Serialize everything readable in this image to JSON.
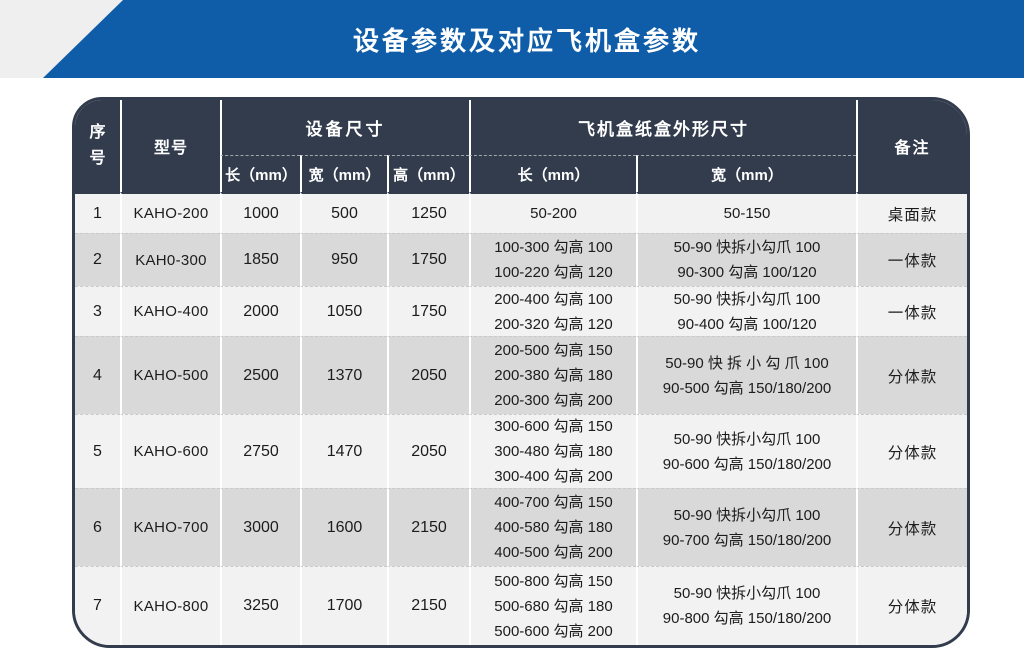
{
  "title": "设备参数及对应飞机盒参数",
  "colors": {
    "banner_blue": "#0F5DA8",
    "header_navy": "#323C4D",
    "row_light": "#F2F2F2",
    "row_dark": "#D9D9D9"
  },
  "table": {
    "headers": {
      "seq": "序号",
      "model": "型号",
      "device_group": "设备尺寸",
      "box_group": "飞机盒纸盒外形尺寸",
      "remark": "备注",
      "device_len": "长（mm）",
      "device_wid": "宽（mm）",
      "device_hgt": "高（mm）",
      "box_len": "长（mm）",
      "box_wid": "宽（mm）"
    },
    "rows": [
      {
        "seq": "1",
        "model": "KAHO-200",
        "len": "1000",
        "wid": "500",
        "hgt": "1250",
        "box_len": [
          "50-200"
        ],
        "box_wid": [
          "50-150"
        ],
        "remark": "桌面款"
      },
      {
        "seq": "2",
        "model": "KAH0-300",
        "len": "1850",
        "wid": "950",
        "hgt": "1750",
        "box_len": [
          "100-300 勾高 100",
          "100-220 勾高 120"
        ],
        "box_wid": [
          "50-90 快拆小勾爪 100",
          "90-300 勾高 100/120"
        ],
        "remark": "一体款"
      },
      {
        "seq": "3",
        "model": "KAHO-400",
        "len": "2000",
        "wid": "1050",
        "hgt": "1750",
        "box_len": [
          "200-400 勾高 100",
          "200-320 勾高 120"
        ],
        "box_wid": [
          "50-90 快拆小勾爪 100",
          "90-400 勾高 100/120"
        ],
        "remark": "一体款"
      },
      {
        "seq": "4",
        "model": "KAHO-500",
        "len": "2500",
        "wid": "1370",
        "hgt": "2050",
        "box_len": [
          "200-500 勾高 150",
          "200-380 勾高 180",
          "200-300 勾高 200"
        ],
        "box_wid": [
          "50-90 快 拆 小 勾 爪 100",
          "90-500 勾高 150/180/200"
        ],
        "remark": "分体款"
      },
      {
        "seq": "5",
        "model": "KAHO-600",
        "len": "2750",
        "wid": "1470",
        "hgt": "2050",
        "box_len": [
          "300-600 勾高 150",
          "300-480 勾高 180",
          "300-400 勾高 200"
        ],
        "box_wid": [
          "50-90 快拆小勾爪 100",
          "90-600 勾高 150/180/200"
        ],
        "remark": "分体款"
      },
      {
        "seq": "6",
        "model": "KAHO-700",
        "len": "3000",
        "wid": "1600",
        "hgt": "2150",
        "box_len": [
          "400-700 勾高 150",
          "400-580 勾高 180",
          "400-500 勾高 200"
        ],
        "box_wid": [
          "50-90 快拆小勾爪 100",
          "90-700 勾高 150/180/200"
        ],
        "remark": "分体款"
      },
      {
        "seq": "7",
        "model": "KAHO-800",
        "len": "3250",
        "wid": "1700",
        "hgt": "2150",
        "box_len": [
          "500-800 勾高 150",
          "500-680 勾高 180",
          "500-600 勾高 200"
        ],
        "box_wid": [
          "50-90 快拆小勾爪 100",
          "90-800 勾高 150/180/200"
        ],
        "remark": "分体款"
      }
    ]
  }
}
